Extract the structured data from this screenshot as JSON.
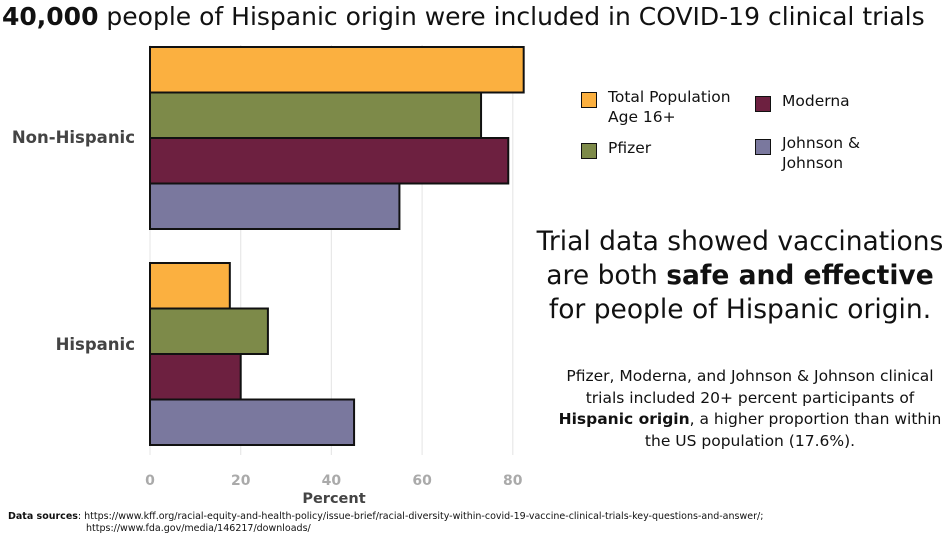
{
  "title": {
    "bold": "40,000",
    "rest": " people of Hispanic origin were included in COVID-19 clinical trials"
  },
  "chart_data": {
    "type": "bar",
    "orientation": "horizontal",
    "categories": [
      "Non-Hispanic",
      "Hispanic"
    ],
    "series": [
      {
        "name": "Total Population Age 16+",
        "color": "#FBB040",
        "values": [
          82.4,
          17.6
        ]
      },
      {
        "name": "Pfizer",
        "color": "#7D8A49",
        "values": [
          73,
          26
        ]
      },
      {
        "name": "Moderna",
        "color": "#6D2040",
        "values": [
          79,
          20
        ]
      },
      {
        "name": "Johnson & Johnson",
        "color": "#7A789E",
        "values": [
          55,
          45
        ]
      }
    ],
    "xlabel": "Percent",
    "xlim": [
      0,
      90
    ],
    "xticks": [
      0,
      20,
      40,
      60,
      80
    ],
    "grid": true,
    "legend_position": "right"
  },
  "legend": [
    {
      "lines": [
        "Total Population",
        "Age 16+"
      ],
      "color": "#FBB040"
    },
    {
      "lines": [
        "Moderna"
      ],
      "color": "#6D2040"
    },
    {
      "lines": [
        "Pfizer"
      ],
      "color": "#7D8A49"
    },
    {
      "lines": [
        "Johnson &",
        "Johnson"
      ],
      "color": "#7A789E"
    }
  ],
  "headline": {
    "line1": "Trial data showed vaccinations",
    "line2_pre": "are both ",
    "line2_bold": "safe and effective",
    "line3": "for people of Hispanic origin."
  },
  "note": {
    "pre": "Pfizer, Moderna, and Johnson & Johnson clinical trials included 20+ percent participants of ",
    "bold": "Hispanic origin",
    "post": ", a higher proportion than within the US population (17.6%)."
  },
  "sources": {
    "label": "Data sources",
    "line1": ": https://www.kff.org/racial-equity-and-health-policy/issue-brief/racial-diversity-within-covid-19-vaccine-clinical-trials-key-questions-and-answer/;",
    "line2": "https://www.fda.gov/media/146217/downloads/"
  }
}
